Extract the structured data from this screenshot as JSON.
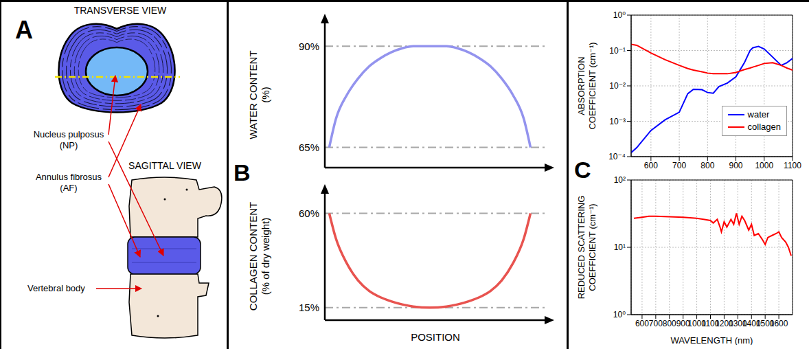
{
  "panel_labels": [
    "A",
    "B",
    "C"
  ],
  "diagram": {
    "titles": [
      "TRANSVERSE VIEW",
      "SAGITTAL VIEW"
    ],
    "labels": [
      "Nucleus pulposus (NP)",
      "Annulus fibrosus (AF)",
      "Vertebral body"
    ]
  },
  "chart_data": [
    {
      "type": "line",
      "y_label": "WATER CONTENT (%)",
      "x": [
        2,
        5,
        10,
        15,
        20,
        25,
        30,
        35,
        40,
        47.5,
        55,
        60,
        65,
        70,
        75,
        80,
        85,
        90,
        93
      ],
      "values": [
        65,
        72,
        78,
        82,
        85,
        87,
        88.5,
        89.5,
        90,
        90,
        90,
        89.5,
        88.5,
        87,
        85,
        82,
        78,
        72,
        65
      ],
      "color": "#9393ee",
      "xlim": [
        0,
        100
      ],
      "xticks": [],
      "ylim": [
        60,
        96
      ],
      "yticks": [
        {
          "value": 65,
          "label": "65%"
        },
        {
          "value": 90,
          "label": "90%"
        }
      ],
      "grid": true,
      "tick_labels": "y"
    },
    {
      "type": "line",
      "y_label": "COLLAGEN CONTENT (% of dry weight)",
      "x_label": "POSITION",
      "x": [
        2,
        5,
        10,
        15,
        20,
        25,
        30,
        35,
        40,
        47.5,
        55,
        60,
        65,
        70,
        75,
        80,
        85,
        90,
        93
      ],
      "values": [
        60,
        48,
        36,
        28,
        23,
        20,
        18,
        16.5,
        15.5,
        15,
        15.5,
        16.5,
        18,
        20,
        23,
        28,
        36,
        48,
        60
      ],
      "color": "#e8534f",
      "xlim": [
        0,
        100
      ],
      "xticks": [],
      "ylim": [
        9,
        70
      ],
      "yticks": [
        {
          "value": 15,
          "label": "15%"
        },
        {
          "value": 60,
          "label": "60%"
        }
      ],
      "grid": true,
      "tick_labels": "y"
    },
    {
      "type": "line",
      "y_label": "ABSORPTION COEFFICIENT (cm⁻¹)",
      "x": [
        530,
        550,
        600,
        650,
        700,
        730,
        750,
        780,
        800,
        820,
        840,
        870,
        900,
        930,
        950,
        960,
        980,
        1000,
        1030,
        1060,
        1080,
        1100
      ],
      "series": [
        {
          "name": "water",
          "color": "#0000ff",
          "values": [
            0.00013,
            0.00018,
            0.00055,
            0.0011,
            0.0018,
            0.006,
            0.008,
            0.0078,
            0.0065,
            0.0062,
            0.0095,
            0.012,
            0.018,
            0.045,
            0.1,
            0.12,
            0.13,
            0.11,
            0.065,
            0.038,
            0.045,
            0.06
          ]
        },
        {
          "name": "collagen",
          "color": "#ff0000",
          "values": [
            0.15,
            0.14,
            0.085,
            0.055,
            0.038,
            0.031,
            0.028,
            0.025,
            0.023,
            0.022,
            0.022,
            0.022,
            0.024,
            0.029,
            0.032,
            0.034,
            0.038,
            0.043,
            0.045,
            0.038,
            0.032,
            0.028
          ]
        }
      ],
      "log": "y",
      "grid": true,
      "legend": "lower right",
      "xlim": [
        530,
        1100
      ],
      "xticks": [
        600,
        700,
        800,
        900,
        1000,
        1100
      ],
      "ylim": [
        0.0001,
        1
      ],
      "yticks": [
        {
          "value": 0.0001,
          "label": "10⁻⁴"
        },
        {
          "value": 0.001,
          "label": "10⁻³"
        },
        {
          "value": 0.01,
          "label": "10⁻²"
        },
        {
          "value": 0.1,
          "label": "10⁻¹"
        },
        {
          "value": 1,
          "label": "10⁰"
        }
      ]
    },
    {
      "type": "line",
      "y_label": "REDUCED SCATTERING COEFFICIENT (cm⁻¹)",
      "x_label": "WAVELENGTH (nm)",
      "x": [
        540,
        600,
        650,
        700,
        800,
        900,
        1000,
        1050,
        1100,
        1120,
        1150,
        1170,
        1180,
        1200,
        1220,
        1250,
        1270,
        1290,
        1310,
        1330,
        1350,
        1380,
        1400,
        1420,
        1450,
        1480,
        1500,
        1520,
        1550,
        1580,
        1600,
        1620,
        1650,
        1670,
        1690
      ],
      "values": [
        27,
        28,
        29,
        29,
        28.5,
        28,
        27,
        26,
        25,
        23,
        26,
        20,
        17,
        24,
        20,
        26,
        22,
        32,
        22,
        29,
        25,
        18,
        22,
        15,
        16,
        13,
        11,
        14,
        15,
        16,
        17,
        14,
        12,
        10,
        7.5
      ],
      "color": "#ff0000",
      "log": "y",
      "grid": true,
      "xlim": [
        520,
        1700
      ],
      "xticks": [
        600,
        700,
        800,
        900,
        1000,
        1100,
        1200,
        1300,
        1400,
        1500,
        1600
      ],
      "ylim": [
        1,
        100
      ],
      "yticks": [
        {
          "value": 1,
          "label": "10⁰"
        },
        {
          "value": 10,
          "label": "10¹"
        },
        {
          "value": 100,
          "label": "10²"
        }
      ]
    }
  ]
}
